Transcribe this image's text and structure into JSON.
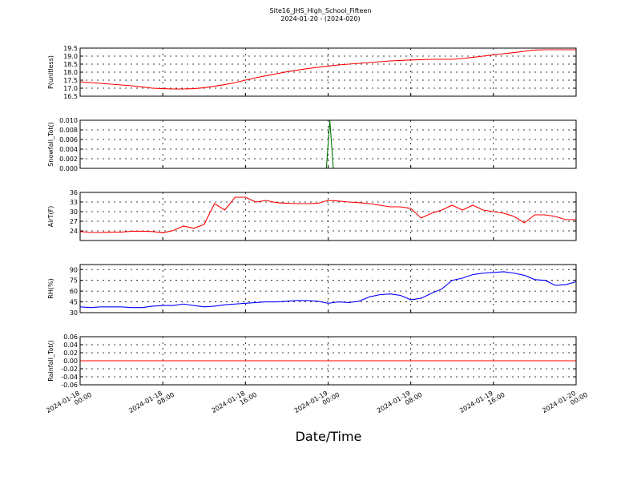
{
  "title": "Site16_JHS_High_School_Fifteen",
  "subtitle": "2024-01-20 - (2024-020)",
  "xlabel": "Date/Time",
  "xlim": [
    "2024-01-18 00:00",
    "2024-01-20 00:00"
  ],
  "xticks": [
    "2024-01-18 00:00",
    "2024-01-18 08:00",
    "2024-01-18 16:00",
    "2024-01-19 00:00",
    "2024-01-19 08:00",
    "2024-01-19 16:00",
    "2024-01-20 00:00"
  ],
  "chart_data": [
    {
      "type": "line",
      "ylabel": "P(unitless)",
      "color": "#ff0000",
      "grid": true,
      "ylim": [
        16.5,
        19.5
      ],
      "yticks": [
        16.5,
        {
          "value": 17,
          "label": "17.0"
        },
        17.5,
        {
          "value": 18,
          "label": "18.0"
        },
        18.5,
        {
          "value": 19,
          "label": "19.0"
        },
        19.5
      ],
      "x": [
        "2024-01-18 00:00",
        "2024-01-18 01:00",
        "2024-01-18 02:00",
        "2024-01-18 03:00",
        "2024-01-18 04:00",
        "2024-01-18 05:00",
        "2024-01-18 06:00",
        "2024-01-18 07:00",
        "2024-01-18 08:00",
        "2024-01-18 09:00",
        "2024-01-18 10:00",
        "2024-01-18 11:00",
        "2024-01-18 12:00",
        "2024-01-18 13:00",
        "2024-01-18 14:00",
        "2024-01-18 15:00",
        "2024-01-18 16:00",
        "2024-01-18 17:00",
        "2024-01-18 18:00",
        "2024-01-18 19:00",
        "2024-01-18 20:00",
        "2024-01-18 21:00",
        "2024-01-18 22:00",
        "2024-01-18 23:00",
        "2024-01-19 00:00",
        "2024-01-19 01:00",
        "2024-01-19 02:00",
        "2024-01-19 03:00",
        "2024-01-19 04:00",
        "2024-01-19 05:00",
        "2024-01-19 06:00",
        "2024-01-19 07:00",
        "2024-01-19 08:00",
        "2024-01-19 09:00",
        "2024-01-19 10:00",
        "2024-01-19 11:00",
        "2024-01-19 12:00",
        "2024-01-19 13:00",
        "2024-01-19 14:00",
        "2024-01-19 15:00",
        "2024-01-19 16:00",
        "2024-01-19 17:00",
        "2024-01-19 18:00",
        "2024-01-19 19:00",
        "2024-01-19 20:00",
        "2024-01-19 21:00",
        "2024-01-19 22:00",
        "2024-01-19 23:00",
        "2024-01-20 00:00"
      ],
      "values": [
        17.4,
        17.35,
        17.3,
        17.25,
        17.2,
        17.15,
        17.08,
        17.0,
        16.97,
        16.95,
        16.95,
        16.97,
        17.03,
        17.12,
        17.22,
        17.35,
        17.5,
        17.65,
        17.78,
        17.9,
        18.02,
        18.12,
        18.22,
        18.3,
        18.38,
        18.45,
        18.5,
        18.55,
        18.6,
        18.65,
        18.7,
        18.73,
        18.76,
        18.78,
        18.8,
        18.8,
        18.8,
        18.85,
        18.92,
        19.0,
        19.08,
        19.15,
        19.22,
        19.3,
        19.38,
        19.4,
        19.4,
        19.4,
        19.4
      ]
    },
    {
      "type": "line",
      "ylabel": "Snowfall_Tot()",
      "color": "#007700",
      "grid": true,
      "ylim": [
        0,
        0.01
      ],
      "yticks": [
        {
          "value": 0,
          "label": "0.000"
        },
        {
          "value": 0.002,
          "label": "0.002"
        },
        {
          "value": 0.004,
          "label": "0.004"
        },
        {
          "value": 0.006,
          "label": "0.006"
        },
        {
          "value": 0.008,
          "label": "0.008"
        },
        {
          "value": 0.01,
          "label": "0.010"
        }
      ],
      "x": [
        "2024-01-18 00:00",
        "2024-01-18 23:50",
        "2024-01-19 00:10",
        "2024-01-19 00:30",
        "2024-01-20 00:00"
      ],
      "values": [
        0,
        0,
        0.01,
        0,
        0
      ]
    },
    {
      "type": "line",
      "ylabel": "AirT(F)",
      "color": "#ff0000",
      "grid": true,
      "ylim": [
        21,
        36
      ],
      "yticks": [
        24,
        27,
        30,
        33,
        36
      ],
      "x": [
        "2024-01-18 00:00",
        "2024-01-18 01:00",
        "2024-01-18 02:00",
        "2024-01-18 03:00",
        "2024-01-18 04:00",
        "2024-01-18 05:00",
        "2024-01-18 06:00",
        "2024-01-18 07:00",
        "2024-01-18 08:00",
        "2024-01-18 09:00",
        "2024-01-18 10:00",
        "2024-01-18 11:00",
        "2024-01-18 12:00",
        "2024-01-18 13:00",
        "2024-01-18 14:00",
        "2024-01-18 15:00",
        "2024-01-18 16:00",
        "2024-01-18 17:00",
        "2024-01-18 18:00",
        "2024-01-18 19:00",
        "2024-01-18 20:00",
        "2024-01-18 21:00",
        "2024-01-18 22:00",
        "2024-01-18 23:00",
        "2024-01-19 00:00",
        "2024-01-19 01:00",
        "2024-01-19 02:00",
        "2024-01-19 03:00",
        "2024-01-19 04:00",
        "2024-01-19 05:00",
        "2024-01-19 06:00",
        "2024-01-19 07:00",
        "2024-01-19 08:00",
        "2024-01-19 09:00",
        "2024-01-19 10:00",
        "2024-01-19 11:00",
        "2024-01-19 12:00",
        "2024-01-19 13:00",
        "2024-01-19 14:00",
        "2024-01-19 15:00",
        "2024-01-19 16:00",
        "2024-01-19 17:00",
        "2024-01-19 18:00",
        "2024-01-19 19:00",
        "2024-01-19 20:00",
        "2024-01-19 21:00",
        "2024-01-19 22:00",
        "2024-01-19 23:00",
        "2024-01-20 00:00"
      ],
      "values": [
        23.8,
        23.5,
        23.5,
        23.6,
        23.6,
        23.9,
        23.9,
        23.8,
        23.4,
        24.1,
        25.5,
        24.8,
        26,
        32.5,
        30.5,
        34.5,
        34.5,
        33,
        33.5,
        32.8,
        32.6,
        32.5,
        32.5,
        32.6,
        33.5,
        33.3,
        33,
        32.8,
        32.5,
        32,
        31.5,
        31.5,
        31,
        28,
        29.5,
        30.5,
        32,
        30.5,
        32,
        30.5,
        30,
        29.5,
        28.5,
        26.5,
        29,
        29,
        28.5,
        27.5,
        27.5
      ]
    },
    {
      "type": "line",
      "ylabel": "RH(%)",
      "color": "#0000ff",
      "grid": true,
      "ylim": [
        30,
        97
      ],
      "yticks": [
        30,
        45,
        60,
        75,
        90
      ],
      "x": [
        "2024-01-18 00:00",
        "2024-01-18 01:00",
        "2024-01-18 02:00",
        "2024-01-18 03:00",
        "2024-01-18 04:00",
        "2024-01-18 05:00",
        "2024-01-18 06:00",
        "2024-01-18 07:00",
        "2024-01-18 08:00",
        "2024-01-18 09:00",
        "2024-01-18 10:00",
        "2024-01-18 11:00",
        "2024-01-18 12:00",
        "2024-01-18 13:00",
        "2024-01-18 14:00",
        "2024-01-18 15:00",
        "2024-01-18 16:00",
        "2024-01-18 17:00",
        "2024-01-18 18:00",
        "2024-01-18 19:00",
        "2024-01-18 20:00",
        "2024-01-18 21:00",
        "2024-01-18 22:00",
        "2024-01-18 23:00",
        "2024-01-19 00:00",
        "2024-01-19 01:00",
        "2024-01-19 02:00",
        "2024-01-19 03:00",
        "2024-01-19 04:00",
        "2024-01-19 05:00",
        "2024-01-19 06:00",
        "2024-01-19 07:00",
        "2024-01-19 08:00",
        "2024-01-19 09:00",
        "2024-01-19 10:00",
        "2024-01-19 11:00",
        "2024-01-19 12:00",
        "2024-01-19 13:00",
        "2024-01-19 14:00",
        "2024-01-19 15:00",
        "2024-01-19 16:00",
        "2024-01-19 17:00",
        "2024-01-19 18:00",
        "2024-01-19 19:00",
        "2024-01-19 20:00",
        "2024-01-19 21:00",
        "2024-01-19 22:00",
        "2024-01-19 23:00",
        "2024-01-20 00:00"
      ],
      "values": [
        38,
        37,
        38,
        38,
        38,
        37,
        37,
        39,
        40,
        40,
        42,
        40,
        38,
        39,
        41,
        42,
        43,
        44,
        45,
        45,
        46,
        47,
        47,
        46,
        43,
        45,
        44,
        46,
        52,
        55,
        56,
        54,
        48,
        50,
        57,
        63,
        75,
        78,
        83,
        85,
        86,
        87,
        85,
        82,
        76,
        75,
        68,
        69,
        73
      ]
    },
    {
      "type": "line",
      "ylabel": "Rainfall_Tot()",
      "color": "#ff0000",
      "grid": true,
      "ylim": [
        -0.06,
        0.06
      ],
      "yticks": [
        -0.06,
        -0.04,
        -0.02,
        {
          "value": 0,
          "label": "0.00"
        },
        0.02,
        0.04,
        0.06
      ],
      "x": [
        "2024-01-18 00:00",
        "2024-01-20 00:00"
      ],
      "values": [
        0,
        0
      ]
    }
  ]
}
